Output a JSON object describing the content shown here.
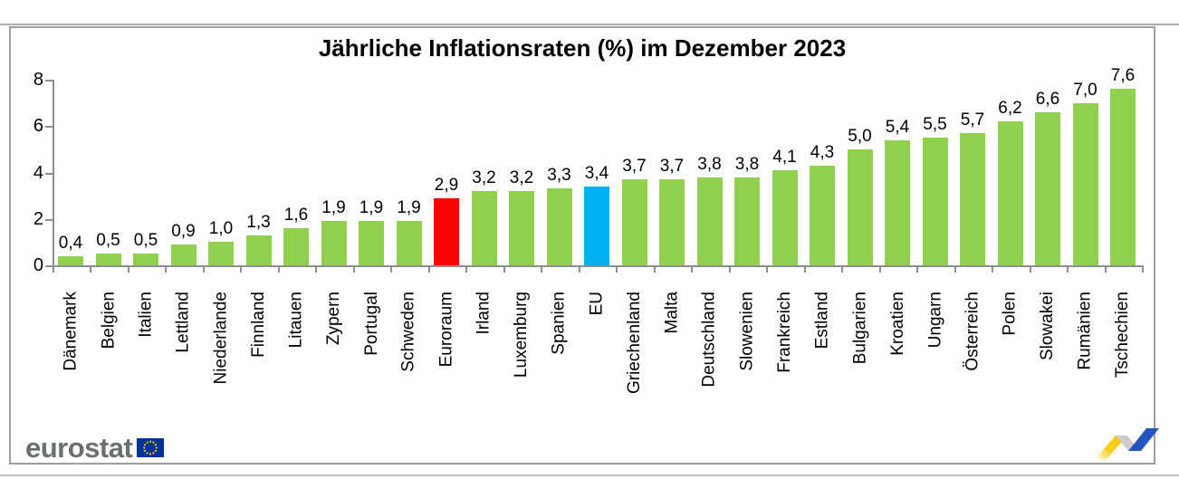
{
  "chart_data": {
    "type": "bar",
    "title": "Jährliche Inflationsraten (%) im Dezember 2023",
    "xlabel": "",
    "ylabel": "",
    "ylim": [
      0,
      8
    ],
    "y_ticks": [
      0,
      2,
      4,
      6,
      8
    ],
    "grid": false,
    "legend_position": "none",
    "decimal_separator": ",",
    "categories": [
      "Dänemark",
      "Belgien",
      "Italien",
      "Lettland",
      "Niederlande",
      "Finnland",
      "Litauen",
      "Zypern",
      "Portugal",
      "Schweden",
      "Euroraum",
      "Irland",
      "Luxemburg",
      "Spanien",
      "EU",
      "Griechenland",
      "Malta",
      "Deutschland",
      "Slowenien",
      "Frankreich",
      "Estland",
      "Bulgarien",
      "Kroatien",
      "Ungarn",
      "Österreich",
      "Polen",
      "Slowakei",
      "Rumänien",
      "Tschechien"
    ],
    "values": [
      0.4,
      0.5,
      0.5,
      0.9,
      1.0,
      1.3,
      1.6,
      1.9,
      1.9,
      1.9,
      2.9,
      3.2,
      3.2,
      3.3,
      3.4,
      3.7,
      3.7,
      3.8,
      3.8,
      4.1,
      4.3,
      5.0,
      5.4,
      5.5,
      5.7,
      6.2,
      6.6,
      7.0,
      7.6
    ],
    "value_labels": [
      "0,4",
      "0,5",
      "0,5",
      "0,9",
      "1,0",
      "1,3",
      "1,6",
      "1,9",
      "1,9",
      "1,9",
      "2,9",
      "3,2",
      "3,2",
      "3,3",
      "3,4",
      "3,7",
      "3,7",
      "3,8",
      "3,8",
      "4,1",
      "4,3",
      "5,0",
      "5,4",
      "5,5",
      "5,7",
      "6,2",
      "6,6",
      "7,0",
      "7,6"
    ],
    "bar_colors": [
      "#92d050",
      "#92d050",
      "#92d050",
      "#92d050",
      "#92d050",
      "#92d050",
      "#92d050",
      "#92d050",
      "#92d050",
      "#92d050",
      "#ff0000",
      "#92d050",
      "#92d050",
      "#92d050",
      "#00b0f0",
      "#92d050",
      "#92d050",
      "#92d050",
      "#92d050",
      "#92d050",
      "#92d050",
      "#92d050",
      "#92d050",
      "#92d050",
      "#92d050",
      "#92d050",
      "#92d050",
      "#92d050",
      "#92d050"
    ],
    "highlighted_bars": {
      "Euroraum": "#ff0000",
      "EU": "#00b0f0",
      "default": "#92d050"
    }
  },
  "branding": {
    "eurostat_wordmark": "eurostat"
  },
  "colors": {
    "bar_default": "#92d050",
    "bar_euro_area": "#ff0000",
    "bar_eu": "#00b0f0",
    "axis": "#8f8f8f",
    "frame_border": "#9f9f9f",
    "eurostat_text": "#6d6e70",
    "flag_blue": "#003399",
    "flag_stars": "#ffcc00",
    "logo_yellow": "#ffcc00",
    "logo_gray": "#cccccc",
    "logo_blue": "#2453c4"
  }
}
